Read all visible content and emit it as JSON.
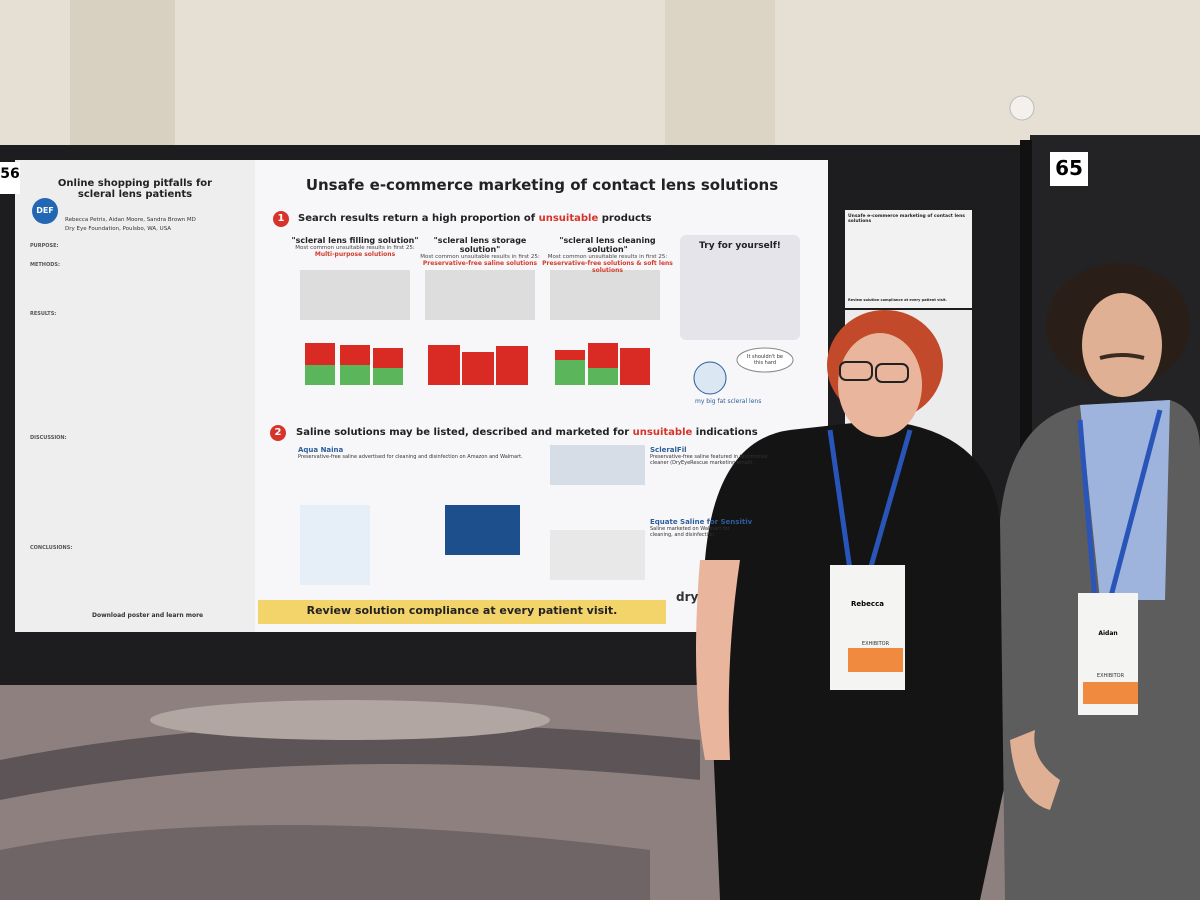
{
  "booth_numbers": [
    "56",
    "65"
  ],
  "poster": {
    "left_panel": {
      "title": "Online shopping pitfalls for scleral lens patients",
      "logo": "DEF",
      "authors": "Rebecca Petris, Aidan Moore, Sandra Brown MD",
      "affiliation": "Dry Eye Foundation, Poulsbo, WA, USA",
      "sections": [
        "PURPOSE:",
        "METHODS:",
        "RESULTS:",
        "DISCUSSION:",
        "CONCLUSIONS:"
      ],
      "footer": "Download poster and learn more"
    },
    "title": "Unsafe e-commerce marketing of contact lens solutions",
    "section1": {
      "number": "1",
      "heading_pre": "Search results return a high proportion of ",
      "heading_em": "unsuitable",
      "heading_post": " products",
      "columns": [
        {
          "query": "\"scleral lens filling solution\"",
          "subtitle": "Most common unsuitable results in first 25:",
          "highlight": "Multi-purpose solutions"
        },
        {
          "query": "\"scleral lens storage solution\"",
          "subtitle": "Most common unsuitable results in first 25:",
          "highlight": "Preservative-free saline solutions"
        },
        {
          "query": "\"scleral lens cleaning solution\"",
          "subtitle": "Most common unsuitable results in first 25:",
          "highlight": "Preservative-free solutions & soft lens solutions"
        }
      ]
    },
    "try_box": {
      "title": "Try for yourself!"
    },
    "bubble": "It shouldn't be this hard",
    "mascot": "my big fat scleral lens",
    "section2": {
      "number": "2",
      "heading_pre": "Saline solutions may be listed, described and marketed for ",
      "heading_em": "unsuitable",
      "heading_post": " indications",
      "products": [
        {
          "name": "Aqua Naina",
          "desc": "Preservative-free saline advertised for cleaning and disinfection on Amazon and Walmart."
        },
        {
          "name": "ScleralFil",
          "desc": "Preservative-free saline featured in testimonial cleaner (DryEyeRescue marketing email)."
        },
        {
          "name": "Equate Saline for Sensitiv",
          "desc": "Saline marketed on Walmart for cleaning, and disinfection."
        }
      ]
    },
    "banner": "Review solution compliance at every patient visit.",
    "brand": "dry"
  },
  "side_poster": {
    "title": "Unsafe e-commerce marketing of contact lens solutions",
    "footer": "Review solution compliance at every patient visit."
  },
  "badges": [
    {
      "name": "Rebecca",
      "role": "EXHIBITOR"
    },
    {
      "name": "Aidan",
      "role": "EXHIBITOR"
    }
  ]
}
